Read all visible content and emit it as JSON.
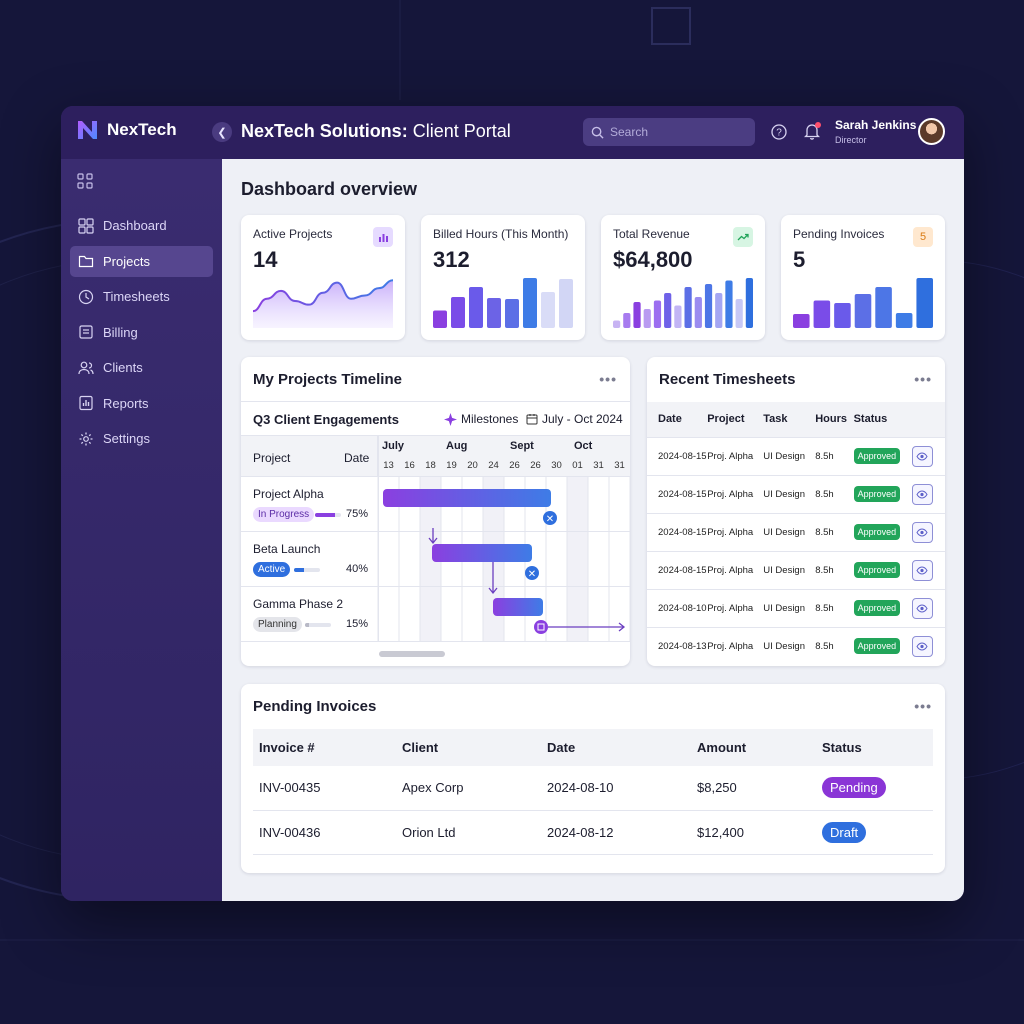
{
  "brand": {
    "name": "NexTech"
  },
  "header": {
    "title_bold": "NexTech Solutions:",
    "title_rest": "Client Portal",
    "search_placeholder": "Search",
    "user_name": "Sarah Jenkins",
    "user_role": "Director"
  },
  "sidebar": {
    "items": [
      {
        "label": "Dashboard",
        "icon": "dashboard-icon",
        "active": false
      },
      {
        "label": "Projects",
        "icon": "folder-icon",
        "active": true
      },
      {
        "label": "Timesheets",
        "icon": "clock-icon",
        "active": false
      },
      {
        "label": "Billing",
        "icon": "billing-icon",
        "active": false
      },
      {
        "label": "Clients",
        "icon": "users-icon",
        "active": false
      },
      {
        "label": "Reports",
        "icon": "reports-icon",
        "active": false
      },
      {
        "label": "Settings",
        "icon": "gear-icon",
        "active": false
      }
    ]
  },
  "main": {
    "title": "Dashboard overview",
    "kpis": [
      {
        "label": "Active Projects",
        "value": "14",
        "badge_icon": "bar-chart-icon",
        "badge_color": "#e6dbff"
      },
      {
        "label": "Billed Hours (This Month)",
        "value": "312",
        "badge_icon": "",
        "badge_color": ""
      },
      {
        "label": "Total Revenue",
        "value": "$64,800",
        "badge_icon": "trend-up-icon",
        "badge_color": "#d7f5e3"
      },
      {
        "label": "Pending Invoices",
        "value": "5",
        "badge_text": "5",
        "badge_color": "#ffe8cf"
      }
    ],
    "kpi_charts": {
      "active_projects_area": [
        0.28,
        0.55,
        0.72,
        0.5,
        0.42,
        0.68,
        0.9,
        0.55,
        0.62,
        0.78,
        0.95
      ],
      "billed_hours_bars": [
        0.35,
        0.62,
        0.82,
        0.6,
        0.58,
        1.0,
        0.72,
        0.98
      ],
      "revenue_bars": [
        0.15,
        0.3,
        0.52,
        0.38,
        0.55,
        0.7,
        0.45,
        0.82,
        0.62,
        0.88,
        0.7,
        0.95,
        0.58,
        1.0
      ],
      "pending_bars": [
        0.28,
        0.55,
        0.5,
        0.68,
        0.82,
        0.3,
        1.0
      ]
    },
    "timeline": {
      "title": "My Projects Timeline",
      "subtitle": "Q3 Client Engagements",
      "milestones_label": "Milestones",
      "range_label": "July - Oct 2024",
      "col_project": "Project",
      "col_date": "Date",
      "months": [
        "July",
        "Aug",
        "Sept",
        "Oct"
      ],
      "days": [
        "13",
        "16",
        "18",
        "19",
        "20",
        "24",
        "26",
        "26",
        "30",
        "01",
        "31",
        "31"
      ],
      "projects": [
        {
          "name": "Project Alpha",
          "status": "In Progress",
          "status_bg": "#ead9ff",
          "status_fg": "#5b2ca6",
          "progress": 0.75,
          "pct": "75%",
          "bar_color": "#8a3fe0"
        },
        {
          "name": "Beta Launch",
          "status": "Active",
          "status_bg": "#2f6fde",
          "status_fg": "#ffffff",
          "progress": 0.4,
          "pct": "40%",
          "bar_color": "#2f6fde"
        },
        {
          "name": "Gamma Phase 2",
          "status": "Planning",
          "status_bg": "#e4e5ea",
          "status_fg": "#333333",
          "progress": 0.15,
          "pct": "15%",
          "bar_color": "#b8b9c6"
        }
      ]
    },
    "timesheets": {
      "title": "Recent Timesheets",
      "headers": [
        "Date",
        "Project",
        "Task",
        "Hours",
        "Status"
      ],
      "rows": [
        {
          "date": "2024-08-15",
          "project": "Proj. Alpha",
          "task": "UI Design",
          "hours": "8.5h",
          "status": "Approved"
        },
        {
          "date": "2024-08-15",
          "project": "Proj. Alpha",
          "task": "UI Design",
          "hours": "8.5h",
          "status": "Approved"
        },
        {
          "date": "2024-08-15",
          "project": "Proj. Alpha",
          "task": "UI Design",
          "hours": "8.5h",
          "status": "Approved"
        },
        {
          "date": "2024-08-15",
          "project": "Proj. Alpha",
          "task": "UI Design",
          "hours": "8.5h",
          "status": "Approved"
        },
        {
          "date": "2024-08-10",
          "project": "Proj. Alpha",
          "task": "UI Design",
          "hours": "8.5h",
          "status": "Approved"
        },
        {
          "date": "2024-08-13",
          "project": "Proj. Alpha",
          "task": "UI Design",
          "hours": "8.5h",
          "status": "Approved"
        }
      ]
    },
    "invoices": {
      "title": "Pending Invoices",
      "headers": [
        "Invoice #",
        "Client",
        "Date",
        "Amount",
        "Status"
      ],
      "rows": [
        {
          "invoice": "INV-00435",
          "client": "Apex Corp",
          "date": "2024-08-10",
          "amount": "$8,250",
          "status": "Pending",
          "status_color": "#8a35d6"
        },
        {
          "invoice": "INV-00436",
          "client": "Orion Ltd",
          "date": "2024-08-12",
          "amount": "$12,400",
          "status": "Draft",
          "status_color": "#2f6fde"
        }
      ]
    }
  }
}
